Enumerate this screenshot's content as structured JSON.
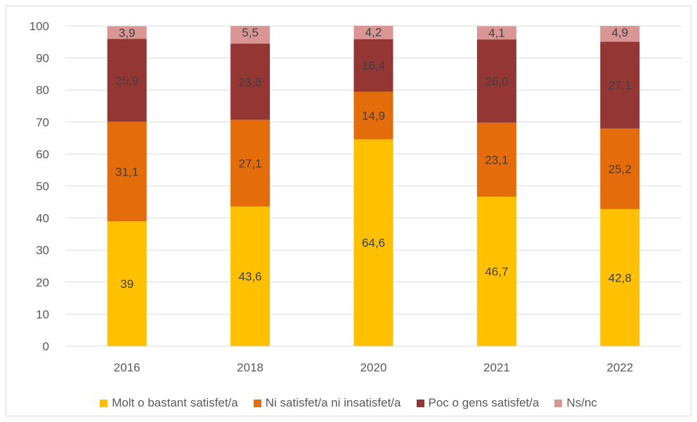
{
  "chart_data": {
    "type": "bar",
    "stacked": true,
    "categories": [
      "2016",
      "2018",
      "2020",
      "2021",
      "2022"
    ],
    "ylim": [
      0,
      100
    ],
    "yticks": [
      0,
      10,
      20,
      30,
      40,
      50,
      60,
      70,
      80,
      90,
      100
    ],
    "grid": true,
    "legend_position": "bottom",
    "series": [
      {
        "name": "Molt o bastant satisfet/a",
        "color": "#ffc000",
        "values": [
          39,
          43.6,
          64.6,
          46.7,
          42.8
        ],
        "labels": [
          "39",
          "43,6",
          "64,6",
          "46,7",
          "42,8"
        ]
      },
      {
        "name": "Ni satisfet/a ni insatisfet/a",
        "color": "#e46c0a",
        "values": [
          31.1,
          27.1,
          14.9,
          23.1,
          25.2
        ],
        "labels": [
          "31,1",
          "27,1",
          "14,9",
          "23,1",
          "25,2"
        ]
      },
      {
        "name": "Poc o gens satisfet/a",
        "color": "#943634",
        "values": [
          25.9,
          23.8,
          16.4,
          26.0,
          27.1
        ],
        "labels": [
          "25,9",
          "23,8",
          "16,4",
          "26,0",
          "27,1"
        ]
      },
      {
        "name": "Ns/nc",
        "color": "#d99694",
        "values": [
          3.9,
          5.5,
          4.2,
          4.1,
          4.9
        ],
        "labels": [
          "3,9",
          "5,5",
          "4,2",
          "4,1",
          "4,9"
        ]
      }
    ]
  }
}
